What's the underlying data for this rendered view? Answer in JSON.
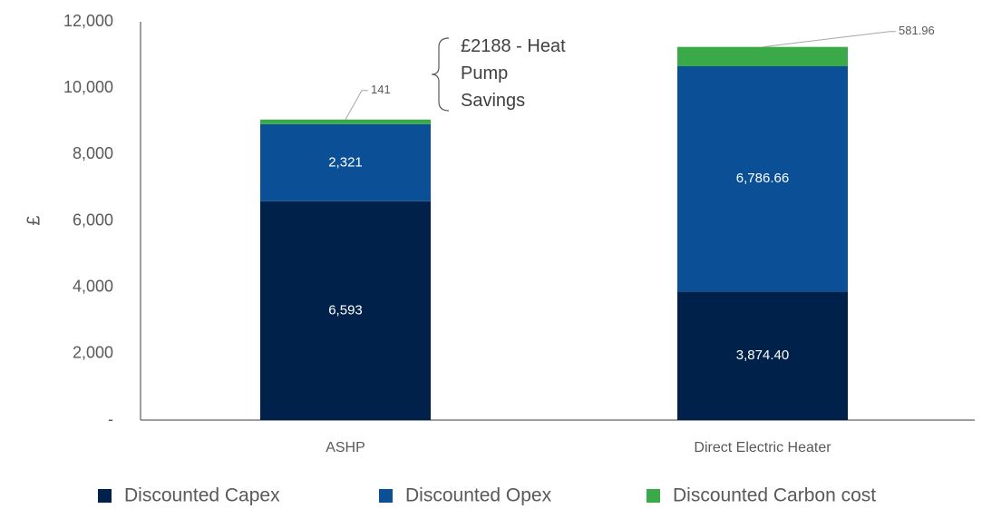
{
  "chart_data": {
    "type": "stacked_bar",
    "ylabel": "£",
    "categories": [
      "ASHP",
      "Direct Electric Heater"
    ],
    "series": [
      {
        "name": "Discounted Capex",
        "color": "#00224a",
        "values": [
          6593,
          3874.4
        ],
        "value_labels": [
          "6,593",
          "3,874.40"
        ]
      },
      {
        "name": "Discounted Opex",
        "color": "#0b4f96",
        "values": [
          2321,
          6786.66
        ],
        "value_labels": [
          "2,321",
          "6,786.66"
        ]
      },
      {
        "name": "Discounted Carbon cost",
        "color": "#3aaa48",
        "values": [
          141,
          581.96
        ],
        "value_labels": [
          "141",
          "581.96"
        ]
      }
    ],
    "annotation": "£2188 - Heat Pump Savings",
    "ylim": [
      0,
      12000
    ],
    "yticks": [
      {
        "value": 0,
        "label": "-"
      },
      {
        "value": 2000,
        "label": "2,000"
      },
      {
        "value": 4000,
        "label": "4,000"
      },
      {
        "value": 6000,
        "label": "6,000"
      },
      {
        "value": 8000,
        "label": "8,000"
      },
      {
        "value": 10000,
        "label": "10,000"
      },
      {
        "value": 12000,
        "label": "12,000"
      }
    ],
    "grid": false,
    "legend": "bottom"
  }
}
